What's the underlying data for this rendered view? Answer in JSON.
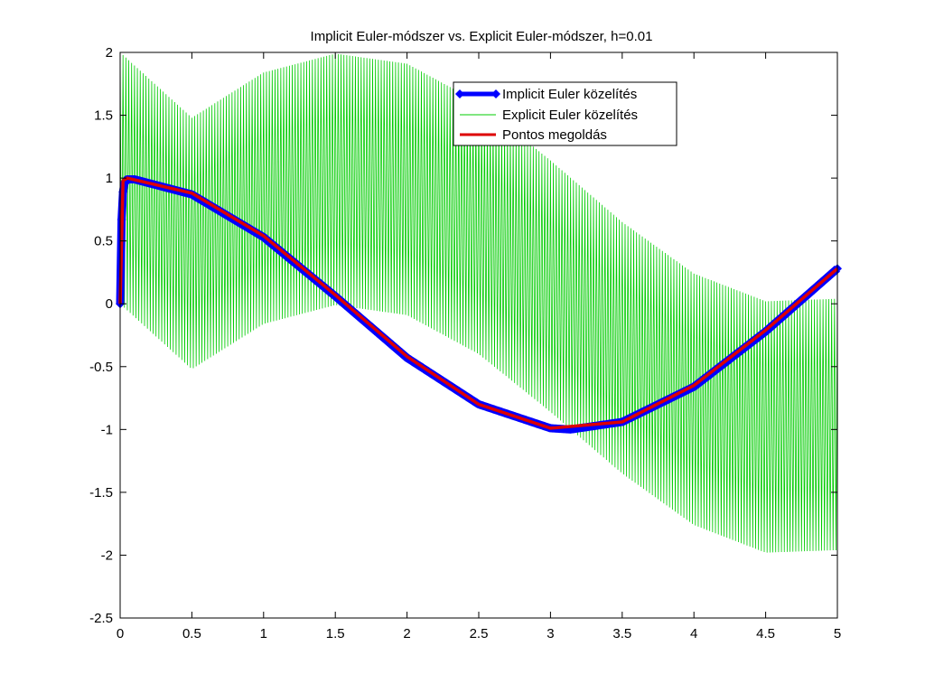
{
  "chart_data": {
    "type": "line",
    "title": "Implicit Euler-módszer vs. Explicit Euler-módszer, h=0.01",
    "xlabel": "",
    "ylabel": "",
    "xlim": [
      0,
      5
    ],
    "ylim": [
      -2.5,
      2
    ],
    "grid": false,
    "legend_position": "top-right",
    "x_ticks": [
      "0",
      "0.5",
      "1",
      "1.5",
      "2",
      "2.5",
      "3",
      "3.5",
      "4",
      "4.5",
      "5"
    ],
    "y_ticks": [
      "2",
      "1.5",
      "1",
      "0.5",
      "0",
      "-0.5",
      "-1",
      "-1.5",
      "-2",
      "-2.5"
    ],
    "h": 0.01,
    "series": [
      {
        "name": "Implicit Euler közelítés",
        "color": "#0000ff",
        "style": "thick line with diamond markers",
        "x": [
          0,
          0.01,
          0.02,
          0.03,
          0.05,
          0.1,
          0.5,
          1,
          1.5,
          2,
          2.5,
          3,
          3.14,
          3.5,
          4,
          4.5,
          5
        ],
        "y": [
          0,
          0.67,
          0.89,
          0.96,
          0.99,
          0.99,
          0.87,
          0.53,
          0.06,
          -0.43,
          -0.8,
          -0.99,
          -1.0,
          -0.94,
          -0.66,
          -0.22,
          0.28
        ]
      },
      {
        "name": "Explicit Euler közelítés",
        "color": "#00cc00",
        "style": "thin oscillating line, envelope sin(x)±1 up to sin(x)±0.5",
        "x": [
          0,
          0.5,
          1,
          1.5,
          2,
          2.5,
          3,
          3.5,
          4,
          4.5,
          5
        ],
        "upper_envelope": [
          2.0,
          1.48,
          1.84,
          1.99,
          1.91,
          1.6,
          1.14,
          0.65,
          0.24,
          0.02,
          0.04
        ],
        "lower_envelope": [
          0.0,
          -0.52,
          -0.16,
          -0.01,
          -0.09,
          -0.4,
          -0.86,
          -1.35,
          -1.76,
          -1.98,
          -1.96
        ]
      },
      {
        "name": "Pontos megoldás",
        "color": "#dd0000",
        "style": "thick solid line",
        "x": [
          0,
          0.02,
          0.05,
          0.5,
          1,
          1.5,
          2,
          2.5,
          3,
          3.5,
          4,
          4.5,
          5
        ],
        "y": [
          0,
          0.98,
          1.0,
          0.88,
          0.54,
          0.07,
          -0.42,
          -0.8,
          -0.99,
          -0.94,
          -0.65,
          -0.21,
          0.28
        ]
      }
    ]
  }
}
